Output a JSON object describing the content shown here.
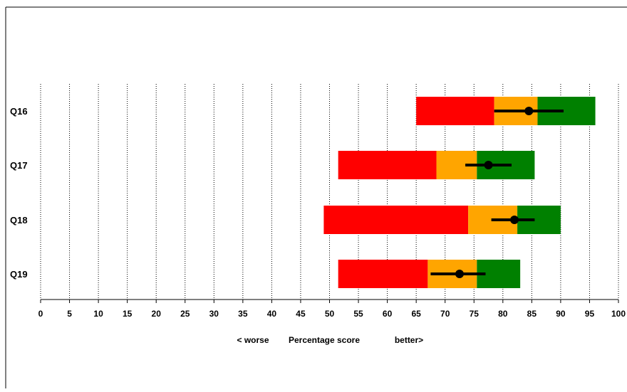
{
  "chart_data": {
    "type": "bar",
    "orientation": "horizontal",
    "categories": [
      "Q16",
      "Q17",
      "Q18",
      "Q19"
    ],
    "xlim": [
      0,
      100
    ],
    "xticks": [
      0,
      5,
      10,
      15,
      20,
      25,
      30,
      35,
      40,
      45,
      50,
      55,
      60,
      65,
      70,
      75,
      80,
      85,
      90,
      95,
      100
    ],
    "grid": "vertical dotted",
    "xlabel": {
      "left": "< worse",
      "center": "Percentage score",
      "right": "better>"
    },
    "bands": [
      {
        "category": "Q16",
        "red": [
          65,
          78.5
        ],
        "orange": [
          78.5,
          86
        ],
        "green": [
          86,
          96
        ]
      },
      {
        "category": "Q17",
        "red": [
          51.5,
          68.5
        ],
        "orange": [
          68.5,
          75.5
        ],
        "green": [
          75.5,
          85.5
        ]
      },
      {
        "category": "Q18",
        "red": [
          49,
          74
        ],
        "orange": [
          74,
          82.5
        ],
        "green": [
          82.5,
          90
        ]
      },
      {
        "category": "Q19",
        "red": [
          51.5,
          67
        ],
        "orange": [
          67,
          75.5
        ],
        "green": [
          75.5,
          83
        ]
      }
    ],
    "points": [
      {
        "category": "Q16",
        "value": 84.5,
        "ci": [
          78.5,
          90.5
        ]
      },
      {
        "category": "Q17",
        "value": 77.5,
        "ci": [
          73.5,
          81.5
        ]
      },
      {
        "category": "Q18",
        "value": 82,
        "ci": [
          78,
          85.5
        ]
      },
      {
        "category": "Q19",
        "value": 72.5,
        "ci": [
          67.5,
          77
        ]
      }
    ],
    "colors": {
      "red": "#ff0000",
      "orange": "#ffa500",
      "green": "#008000",
      "point": "#000000",
      "axis": "#000000"
    }
  }
}
